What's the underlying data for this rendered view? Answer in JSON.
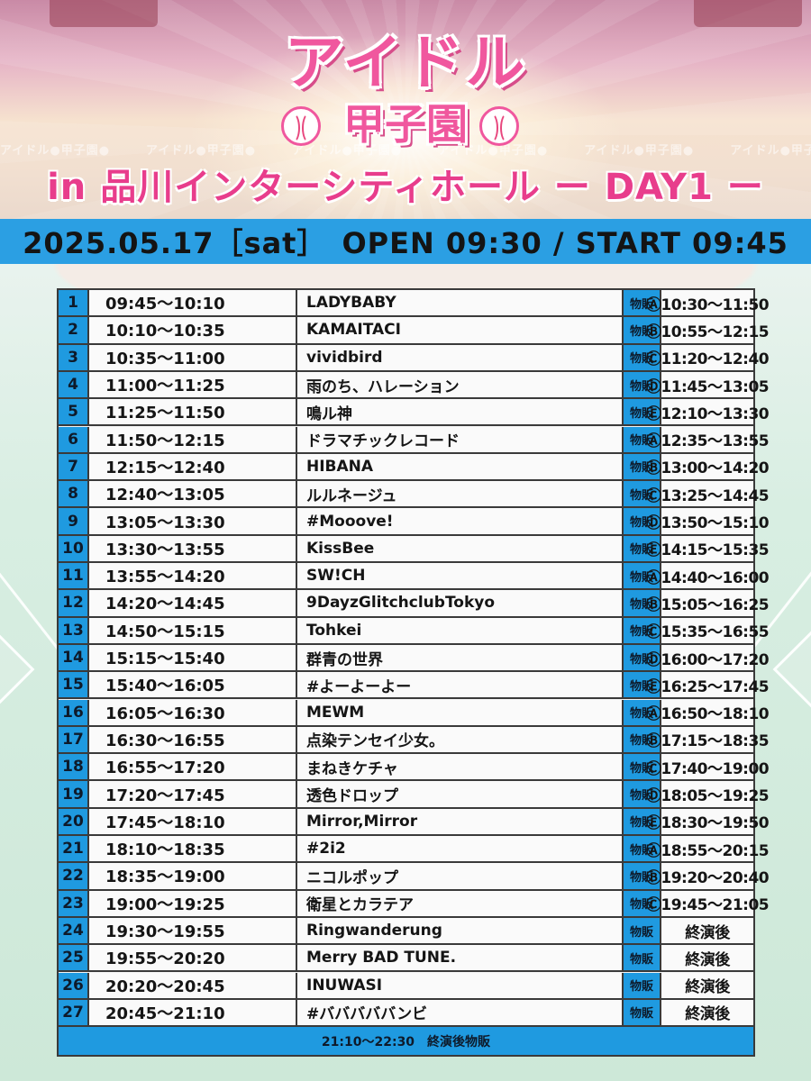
{
  "header": {
    "logo_title": "アイドル",
    "logo_sub": "甲子園",
    "band_text": "アイドル●甲子園●",
    "venue": "in 品川インターシティホール ー DAY1 ー"
  },
  "datebar": {
    "text": "2025.05.17［sat］　OPEN 09:30 / START 09:45"
  },
  "table": {
    "merch_label": "物販",
    "rows": [
      {
        "num": "1",
        "time": "09:45～10:10",
        "artist": "LADYBABY",
        "merch": "Ⓐ10:30～11:50"
      },
      {
        "num": "2",
        "time": "10:10～10:35",
        "artist": "KAMAITACI",
        "merch": "Ⓑ10:55～12:15"
      },
      {
        "num": "3",
        "time": "10:35～11:00",
        "artist": "vividbird",
        "merch": "Ⓒ11:20～12:40"
      },
      {
        "num": "4",
        "time": "11:00～11:25",
        "artist": "雨のち、ハレーション",
        "merch": "Ⓓ11:45～13:05"
      },
      {
        "num": "5",
        "time": "11:25～11:50",
        "artist": "鳴ル神",
        "merch": "Ⓔ12:10～13:30"
      },
      {
        "num": "6",
        "time": "11:50～12:15",
        "artist": "ドラマチックレコード",
        "merch": "Ⓐ12:35～13:55"
      },
      {
        "num": "7",
        "time": "12:15～12:40",
        "artist": "HIBANA",
        "merch": "Ⓑ13:00～14:20"
      },
      {
        "num": "8",
        "time": "12:40～13:05",
        "artist": "ルルネージュ",
        "merch": "Ⓒ13:25～14:45"
      },
      {
        "num": "9",
        "time": "13:05～13:30",
        "artist": "#Mooove!",
        "merch": "Ⓓ13:50～15:10"
      },
      {
        "num": "10",
        "time": "13:30～13:55",
        "artist": "KissBee",
        "merch": "Ⓔ14:15～15:35"
      },
      {
        "num": "11",
        "time": "13:55～14:20",
        "artist": "SW!CH",
        "merch": "Ⓐ14:40～16:00"
      },
      {
        "num": "12",
        "time": "14:20～14:45",
        "artist": "9DayzGlitchclubTokyo",
        "merch": "Ⓑ15:05～16:25"
      },
      {
        "num": "13",
        "time": "14:50～15:15",
        "artist": "Tohkei",
        "merch": "Ⓒ15:35～16:55"
      },
      {
        "num": "14",
        "time": "15:15～15:40",
        "artist": "群青の世界",
        "merch": "Ⓓ16:00～17:20"
      },
      {
        "num": "15",
        "time": "15:40～16:05",
        "artist": "#よーよーよー",
        "merch": "Ⓔ16:25～17:45"
      },
      {
        "num": "16",
        "time": "16:05～16:30",
        "artist": "MEWM",
        "merch": "Ⓐ16:50～18:10"
      },
      {
        "num": "17",
        "time": "16:30～16:55",
        "artist": "点染テンセイ少女。",
        "merch": "Ⓑ17:15～18:35"
      },
      {
        "num": "18",
        "time": "16:55～17:20",
        "artist": "まねきケチャ",
        "merch": "Ⓒ17:40～19:00"
      },
      {
        "num": "19",
        "time": "17:20～17:45",
        "artist": "透色ドロップ",
        "merch": "Ⓓ18:05～19:25"
      },
      {
        "num": "20",
        "time": "17:45～18:10",
        "artist": "Mirror,Mirror",
        "merch": "Ⓔ18:30～19:50"
      },
      {
        "num": "21",
        "time": "18:10～18:35",
        "artist": "#2i2",
        "merch": "Ⓐ18:55～20:15"
      },
      {
        "num": "22",
        "time": "18:35～19:00",
        "artist": "ニコルポップ",
        "merch": "Ⓑ19:20～20:40"
      },
      {
        "num": "23",
        "time": "19:00～19:25",
        "artist": "衛星とカラテア",
        "merch": "Ⓒ19:45～21:05"
      },
      {
        "num": "24",
        "time": "19:30～19:55",
        "artist": "Ringwanderung",
        "merch": "終演後"
      },
      {
        "num": "25",
        "time": "19:55～20:20",
        "artist": "Merry BAD TUNE.",
        "merch": "終演後"
      },
      {
        "num": "26",
        "time": "20:20～20:45",
        "artist": "INUWASI",
        "merch": "終演後"
      },
      {
        "num": "27",
        "time": "20:45～21:10",
        "artist": "#バババババンビ",
        "merch": "終演後"
      }
    ],
    "footer": "21:10～22:30　終演後物販"
  },
  "colors": {
    "accent_blue": "#1f9ae0",
    "logo_pink": "#f0579e",
    "field_green": "#d8eee2"
  }
}
